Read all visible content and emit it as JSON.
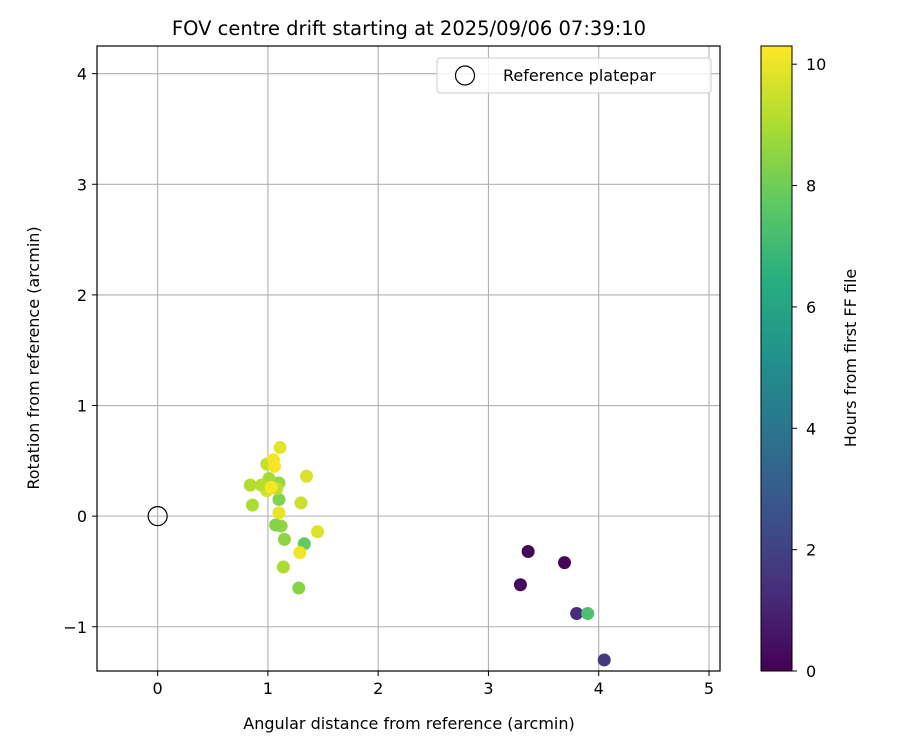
{
  "chart_data": {
    "type": "scatter",
    "title": "FOV centre drift starting at 2025/09/06 07:39:10",
    "xlabel": "Angular distance from reference (arcmin)",
    "ylabel": "Rotation from reference (arcmin)",
    "xlim": [
      -0.55,
      5.1
    ],
    "ylim": [
      -1.4,
      4.25
    ],
    "xticks": [
      0,
      1,
      2,
      3,
      4,
      5
    ],
    "xtick_labels": [
      "0",
      "1",
      "2",
      "3",
      "4",
      "5"
    ],
    "yticks": [
      -1,
      0,
      1,
      2,
      3,
      4
    ],
    "ytick_labels": [
      "−1",
      "0",
      "1",
      "2",
      "3",
      "4"
    ],
    "grid": true,
    "legend": {
      "position": "upper-right",
      "entries": [
        "Reference platepar"
      ]
    },
    "reference_point": {
      "name": "Reference platepar",
      "x": 0,
      "y": 0,
      "marker": "open-circle"
    },
    "colorbar": {
      "label": "Hours from first FF file",
      "min": 0,
      "max": 10.3,
      "ticks": [
        0,
        2,
        4,
        6,
        8,
        10
      ],
      "tick_labels": [
        "0",
        "2",
        "4",
        "6",
        "8",
        "10"
      ],
      "colormap": "viridis"
    },
    "series": [
      {
        "points": [
          {
            "x": 3.36,
            "y": -0.32,
            "c": 0.1
          },
          {
            "x": 3.69,
            "y": -0.42,
            "c": 0.2
          },
          {
            "x": 3.29,
            "y": -0.62,
            "c": 0.3
          },
          {
            "x": 3.8,
            "y": -0.88,
            "c": 1.3
          },
          {
            "x": 4.05,
            "y": -1.3,
            "c": 1.7
          },
          {
            "x": 3.9,
            "y": -0.88,
            "c": 7.3
          },
          {
            "x": 1.28,
            "y": -0.65,
            "c": 8.4
          },
          {
            "x": 1.33,
            "y": -0.25,
            "c": 7.8
          },
          {
            "x": 1.15,
            "y": -0.21,
            "c": 8.5
          },
          {
            "x": 1.12,
            "y": -0.09,
            "c": 8.6
          },
          {
            "x": 1.07,
            "y": -0.08,
            "c": 8.4
          },
          {
            "x": 1.1,
            "y": 0.15,
            "c": 8.3
          },
          {
            "x": 1.1,
            "y": 0.3,
            "c": 8.6
          },
          {
            "x": 1.01,
            "y": 0.34,
            "c": 8.9
          },
          {
            "x": 1.08,
            "y": 0.25,
            "c": 9.3
          },
          {
            "x": 0.99,
            "y": 0.23,
            "c": 9.6
          },
          {
            "x": 0.84,
            "y": 0.28,
            "c": 9.1
          },
          {
            "x": 0.86,
            "y": 0.1,
            "c": 9.0
          },
          {
            "x": 0.94,
            "y": 0.28,
            "c": 9.2
          },
          {
            "x": 0.99,
            "y": 0.47,
            "c": 9.4
          },
          {
            "x": 1.05,
            "y": 0.51,
            "c": 10.1
          },
          {
            "x": 1.06,
            "y": 0.45,
            "c": 10.2
          },
          {
            "x": 1.11,
            "y": 0.62,
            "c": 9.9
          },
          {
            "x": 1.1,
            "y": 0.03,
            "c": 10.0
          },
          {
            "x": 1.14,
            "y": -0.46,
            "c": 9.0
          },
          {
            "x": 1.3,
            "y": 0.12,
            "c": 9.5
          },
          {
            "x": 1.35,
            "y": 0.36,
            "c": 9.7
          },
          {
            "x": 1.45,
            "y": -0.14,
            "c": 9.8
          },
          {
            "x": 1.29,
            "y": -0.33,
            "c": 10.1
          },
          {
            "x": 1.03,
            "y": 0.26,
            "c": 10.2
          }
        ]
      }
    ]
  }
}
